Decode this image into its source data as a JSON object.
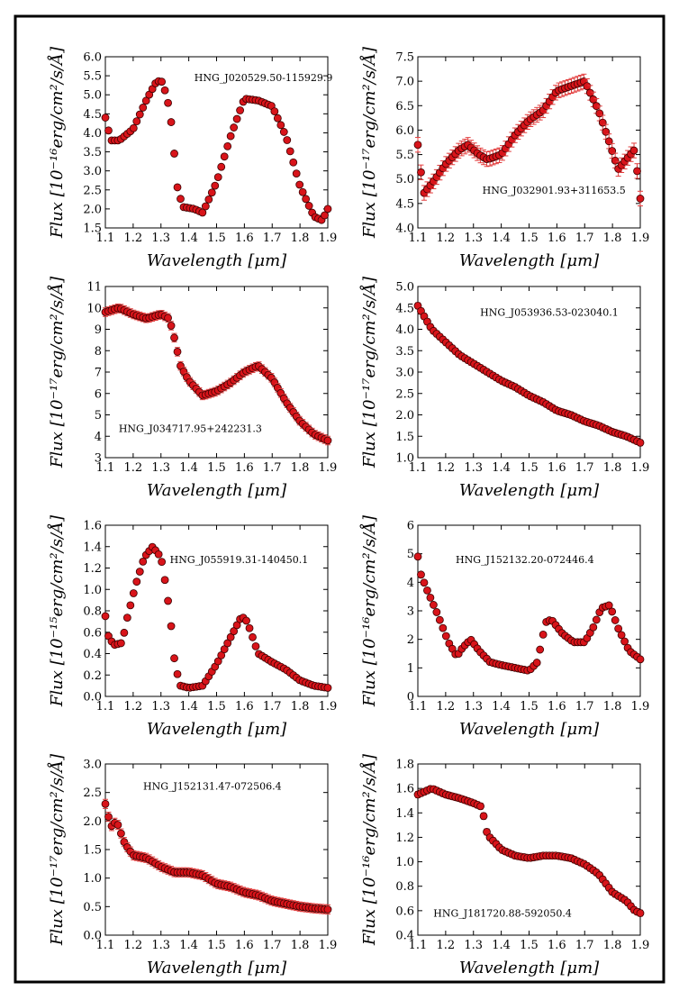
{
  "chart_data": [
    {
      "type": "scatter",
      "annotation": "HNG_J020529.50-115929.9",
      "xlabel": "Wavelength [μm]",
      "ylabel": "Flux [10⁻¹⁶erg/cm²/s/Å]",
      "xlim": [
        1.1,
        1.9
      ],
      "ylim": [
        1.5,
        6.0
      ],
      "xticks": [
        "1.1",
        "1.2",
        "1.3",
        "1.4",
        "1.5",
        "1.6",
        "1.7",
        "1.8",
        "1.9"
      ],
      "yticks": [
        "1.5",
        "2.0",
        "2.5",
        "3.0",
        "3.5",
        "4.0",
        "4.5",
        "5.0",
        "5.5",
        "6.0"
      ],
      "anchors": [
        [
          1.1,
          4.4
        ],
        [
          1.12,
          3.8
        ],
        [
          1.15,
          3.8
        ],
        [
          1.2,
          4.1
        ],
        [
          1.25,
          4.9
        ],
        [
          1.28,
          5.3
        ],
        [
          1.3,
          5.4
        ],
        [
          1.32,
          5.0
        ],
        [
          1.335,
          4.4
        ],
        [
          1.35,
          3.3
        ],
        [
          1.36,
          2.5
        ],
        [
          1.38,
          2.05
        ],
        [
          1.42,
          2.0
        ],
        [
          1.45,
          1.9
        ],
        [
          1.5,
          2.7
        ],
        [
          1.55,
          3.9
        ],
        [
          1.6,
          4.9
        ],
        [
          1.65,
          4.85
        ],
        [
          1.7,
          4.7
        ],
        [
          1.75,
          3.9
        ],
        [
          1.8,
          2.6
        ],
        [
          1.85,
          1.8
        ],
        [
          1.88,
          1.7
        ],
        [
          1.9,
          2.0
        ]
      ],
      "error": 0.05
    },
    {
      "type": "scatter",
      "annotation": "HNG_J032901.93+311653.5",
      "xlabel": "Wavelength [μm]",
      "ylabel": "Flux [10⁻¹⁷erg/cm²/s/Å]",
      "xlim": [
        1.1,
        1.9
      ],
      "ylim": [
        4.0,
        7.5
      ],
      "xticks": [
        "1.1",
        "1.2",
        "1.3",
        "1.4",
        "1.5",
        "1.6",
        "1.7",
        "1.8",
        "1.9"
      ],
      "yticks": [
        "4.0",
        "4.5",
        "5.0",
        "5.5",
        "6.0",
        "6.5",
        "7.0",
        "7.5"
      ],
      "anchors": [
        [
          1.1,
          5.7
        ],
        [
          1.12,
          4.7
        ],
        [
          1.15,
          4.9
        ],
        [
          1.2,
          5.3
        ],
        [
          1.25,
          5.6
        ],
        [
          1.28,
          5.7
        ],
        [
          1.32,
          5.5
        ],
        [
          1.35,
          5.4
        ],
        [
          1.4,
          5.5
        ],
        [
          1.45,
          5.9
        ],
        [
          1.5,
          6.2
        ],
        [
          1.55,
          6.4
        ],
        [
          1.6,
          6.8
        ],
        [
          1.65,
          6.9
        ],
        [
          1.7,
          7.0
        ],
        [
          1.75,
          6.4
        ],
        [
          1.78,
          5.9
        ],
        [
          1.82,
          5.2
        ],
        [
          1.85,
          5.4
        ],
        [
          1.88,
          5.6
        ],
        [
          1.9,
          4.6
        ]
      ],
      "error": 0.15
    },
    {
      "type": "scatter",
      "annotation": "HNG_J034717.95+242231.3",
      "xlabel": "Wavelength [μm]",
      "ylabel": "Flux [10⁻¹⁷erg/cm²/s/Å]",
      "xlim": [
        1.1,
        1.9
      ],
      "ylim": [
        3,
        11
      ],
      "xticks": [
        "1.1",
        "1.2",
        "1.3",
        "1.4",
        "1.5",
        "1.6",
        "1.7",
        "1.8",
        "1.9"
      ],
      "yticks": [
        "3",
        "4",
        "5",
        "6",
        "7",
        "8",
        "9",
        "10",
        "11"
      ],
      "anchors": [
        [
          1.1,
          9.8
        ],
        [
          1.15,
          10.0
        ],
        [
          1.2,
          9.7
        ],
        [
          1.25,
          9.5
        ],
        [
          1.3,
          9.7
        ],
        [
          1.33,
          9.5
        ],
        [
          1.35,
          8.5
        ],
        [
          1.37,
          7.3
        ],
        [
          1.4,
          6.6
        ],
        [
          1.45,
          5.9
        ],
        [
          1.5,
          6.1
        ],
        [
          1.55,
          6.5
        ],
        [
          1.6,
          7.0
        ],
        [
          1.65,
          7.3
        ],
        [
          1.7,
          6.7
        ],
        [
          1.75,
          5.6
        ],
        [
          1.8,
          4.7
        ],
        [
          1.85,
          4.1
        ],
        [
          1.9,
          3.8
        ]
      ],
      "error": 0.2
    },
    {
      "type": "scatter",
      "annotation": "HNG_J053936.53-023040.1",
      "xlabel": "Wavelength [μm]",
      "ylabel": "Flux [10⁻¹⁷erg/cm²/s/Å]",
      "xlim": [
        1.1,
        1.9
      ],
      "ylim": [
        1.0,
        5.0
      ],
      "xticks": [
        "1.1",
        "1.2",
        "1.3",
        "1.4",
        "1.5",
        "1.6",
        "1.7",
        "1.8",
        "1.9"
      ],
      "yticks": [
        "1.0",
        "1.5",
        "2.0",
        "2.5",
        "3.0",
        "3.5",
        "4.0",
        "4.5",
        "5.0"
      ],
      "anchors": [
        [
          1.1,
          4.55
        ],
        [
          1.15,
          4.0
        ],
        [
          1.2,
          3.7
        ],
        [
          1.25,
          3.4
        ],
        [
          1.3,
          3.2
        ],
        [
          1.35,
          3.0
        ],
        [
          1.4,
          2.8
        ],
        [
          1.45,
          2.65
        ],
        [
          1.5,
          2.45
        ],
        [
          1.55,
          2.3
        ],
        [
          1.6,
          2.1
        ],
        [
          1.65,
          2.0
        ],
        [
          1.7,
          1.85
        ],
        [
          1.75,
          1.75
        ],
        [
          1.8,
          1.6
        ],
        [
          1.85,
          1.5
        ],
        [
          1.9,
          1.35
        ]
      ],
      "error": 0.07
    },
    {
      "type": "scatter",
      "annotation": "HNG_J055919.31-140450.1",
      "xlabel": "Wavelength [μm]",
      "ylabel": "Flux [10⁻¹⁵erg/cm²/s/Å]",
      "xlim": [
        1.1,
        1.9
      ],
      "ylim": [
        0.0,
        1.6
      ],
      "xticks": [
        "1.1",
        "1.2",
        "1.3",
        "1.4",
        "1.5",
        "1.6",
        "1.7",
        "1.8",
        "1.9"
      ],
      "yticks": [
        "0.0",
        "0.2",
        "0.4",
        "0.6",
        "0.8",
        "1.0",
        "1.2",
        "1.4",
        "1.6"
      ],
      "anchors": [
        [
          1.1,
          0.75
        ],
        [
          1.11,
          0.57
        ],
        [
          1.13,
          0.48
        ],
        [
          1.16,
          0.5
        ],
        [
          1.18,
          0.75
        ],
        [
          1.21,
          1.05
        ],
        [
          1.24,
          1.3
        ],
        [
          1.27,
          1.4
        ],
        [
          1.3,
          1.3
        ],
        [
          1.32,
          1.0
        ],
        [
          1.335,
          0.7
        ],
        [
          1.35,
          0.3
        ],
        [
          1.37,
          0.1
        ],
        [
          1.4,
          0.08
        ],
        [
          1.45,
          0.1
        ],
        [
          1.5,
          0.3
        ],
        [
          1.55,
          0.55
        ],
        [
          1.59,
          0.75
        ],
        [
          1.61,
          0.7
        ],
        [
          1.65,
          0.4
        ],
        [
          1.7,
          0.32
        ],
        [
          1.75,
          0.25
        ],
        [
          1.8,
          0.15
        ],
        [
          1.85,
          0.1
        ],
        [
          1.9,
          0.08
        ]
      ],
      "error": 0.02
    },
    {
      "type": "scatter",
      "annotation": "HNG_J152132.20-072446.4",
      "xlabel": "Wavelength [μm]",
      "ylabel": "Flux [10⁻¹⁶erg/cm²/s/Å]",
      "xlim": [
        1.1,
        1.9
      ],
      "ylim": [
        0,
        6
      ],
      "xticks": [
        "1.1",
        "1.2",
        "1.3",
        "1.4",
        "1.5",
        "1.6",
        "1.7",
        "1.8",
        "1.9"
      ],
      "yticks": [
        "0",
        "1",
        "2",
        "3",
        "4",
        "5",
        "6"
      ],
      "anchors": [
        [
          1.1,
          4.9
        ],
        [
          1.11,
          4.3
        ],
        [
          1.13,
          3.8
        ],
        [
          1.17,
          2.9
        ],
        [
          1.21,
          1.9
        ],
        [
          1.24,
          1.4
        ],
        [
          1.26,
          1.7
        ],
        [
          1.29,
          2.0
        ],
        [
          1.32,
          1.6
        ],
        [
          1.36,
          1.2
        ],
        [
          1.4,
          1.1
        ],
        [
          1.45,
          1.0
        ],
        [
          1.5,
          0.9
        ],
        [
          1.53,
          1.2
        ],
        [
          1.56,
          2.6
        ],
        [
          1.58,
          2.7
        ],
        [
          1.62,
          2.2
        ],
        [
          1.66,
          1.9
        ],
        [
          1.7,
          1.9
        ],
        [
          1.73,
          2.4
        ],
        [
          1.76,
          3.1
        ],
        [
          1.79,
          3.2
        ],
        [
          1.82,
          2.4
        ],
        [
          1.86,
          1.6
        ],
        [
          1.9,
          1.3
        ]
      ],
      "error": 0.06
    },
    {
      "type": "scatter",
      "annotation": "HNG_J152131.47-072506.4",
      "xlabel": "Wavelength [μm]",
      "ylabel": "Flux [10⁻¹⁷erg/cm²/s/Å]",
      "xlim": [
        1.1,
        1.9
      ],
      "ylim": [
        0.0,
        3.0
      ],
      "xticks": [
        "1.1",
        "1.2",
        "1.3",
        "1.4",
        "1.5",
        "1.6",
        "1.7",
        "1.8",
        "1.9"
      ],
      "yticks": [
        "0.0",
        "0.5",
        "1.0",
        "1.5",
        "2.0",
        "2.5",
        "3.0"
      ],
      "anchors": [
        [
          1.1,
          2.3
        ],
        [
          1.12,
          1.9
        ],
        [
          1.14,
          2.0
        ],
        [
          1.17,
          1.6
        ],
        [
          1.2,
          1.4
        ],
        [
          1.25,
          1.35
        ],
        [
          1.3,
          1.2
        ],
        [
          1.35,
          1.1
        ],
        [
          1.4,
          1.1
        ],
        [
          1.45,
          1.05
        ],
        [
          1.5,
          0.9
        ],
        [
          1.55,
          0.85
        ],
        [
          1.6,
          0.75
        ],
        [
          1.65,
          0.7
        ],
        [
          1.7,
          0.6
        ],
        [
          1.75,
          0.55
        ],
        [
          1.8,
          0.5
        ],
        [
          1.85,
          0.47
        ],
        [
          1.9,
          0.45
        ]
      ],
      "error": 0.08
    },
    {
      "type": "scatter",
      "annotation": "HNG_J181720.88-592050.4",
      "xlabel": "Wavelength [μm]",
      "ylabel": "Flux [10⁻¹⁶erg/cm²/s/Å]",
      "xlim": [
        1.1,
        1.9
      ],
      "ylim": [
        0.4,
        1.8
      ],
      "xticks": [
        "1.1",
        "1.2",
        "1.3",
        "1.4",
        "1.5",
        "1.6",
        "1.7",
        "1.8",
        "1.9"
      ],
      "yticks": [
        "0.4",
        "0.6",
        "0.8",
        "1.0",
        "1.2",
        "1.4",
        "1.6",
        "1.8"
      ],
      "anchors": [
        [
          1.1,
          1.55
        ],
        [
          1.15,
          1.6
        ],
        [
          1.2,
          1.55
        ],
        [
          1.25,
          1.52
        ],
        [
          1.3,
          1.48
        ],
        [
          1.33,
          1.45
        ],
        [
          1.35,
          1.22
        ],
        [
          1.38,
          1.15
        ],
        [
          1.4,
          1.1
        ],
        [
          1.45,
          1.05
        ],
        [
          1.5,
          1.03
        ],
        [
          1.55,
          1.05
        ],
        [
          1.6,
          1.05
        ],
        [
          1.65,
          1.03
        ],
        [
          1.7,
          0.98
        ],
        [
          1.75,
          0.9
        ],
        [
          1.8,
          0.75
        ],
        [
          1.85,
          0.68
        ],
        [
          1.88,
          0.6
        ],
        [
          1.9,
          0.58
        ]
      ],
      "error": 0.025
    }
  ]
}
